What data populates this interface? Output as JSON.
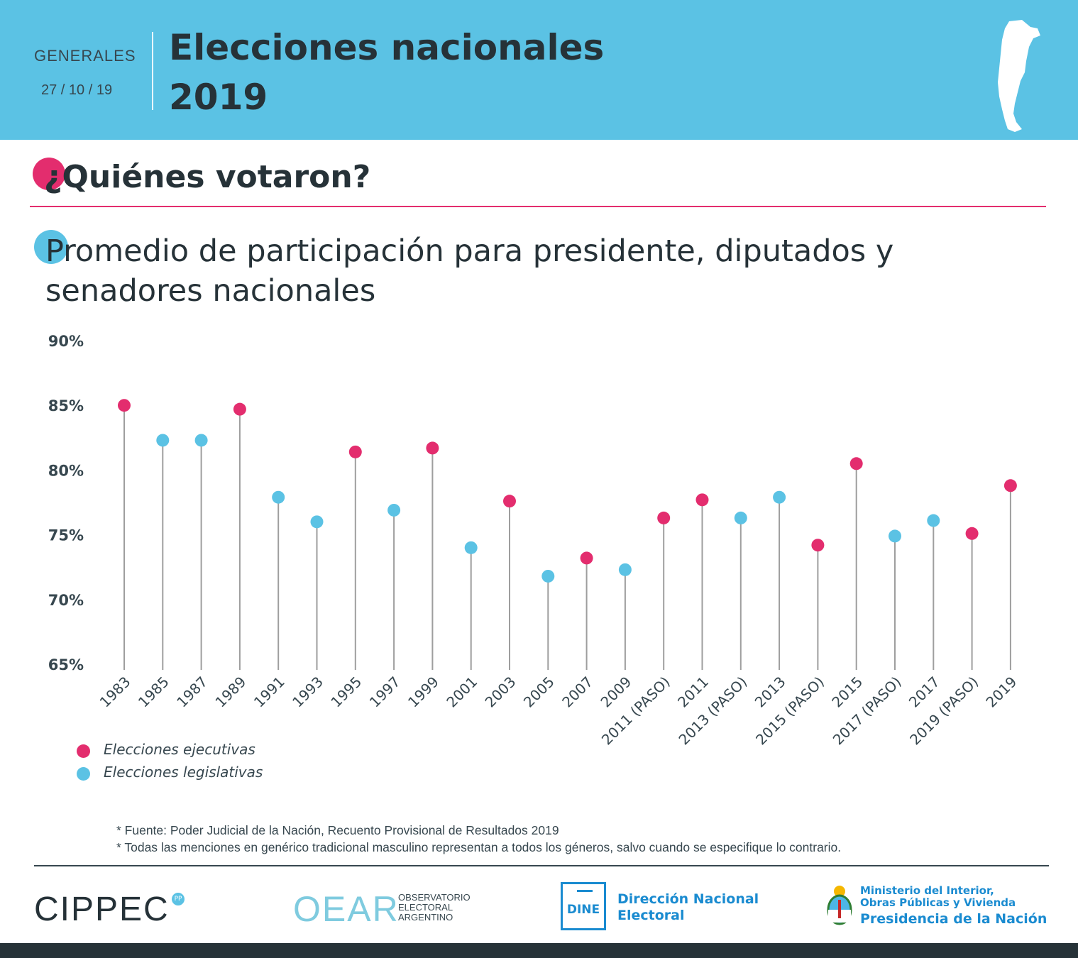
{
  "header": {
    "category": "GENERALES",
    "date": "27 / 10 / 19",
    "title_line1": "Elecciones nacionales",
    "title_line2": "2019",
    "background_color": "#5bc2e4"
  },
  "section": {
    "title": "¿Quiénes votaron?",
    "accent": "#e32d6e"
  },
  "chart_data": {
    "type": "scatter",
    "subtype": "lollipop",
    "title": "Promedio de participación para presidente, diputados y senadores nacionales",
    "xlabel": "",
    "ylabel": "",
    "ylim": [
      65,
      90
    ],
    "yticks": [
      90,
      85,
      80,
      75,
      70,
      65
    ],
    "ytick_labels": [
      "90%",
      "85%",
      "80%",
      "75%",
      "70%",
      "65%"
    ],
    "grid": false,
    "categories": [
      "1983",
      "1985",
      "1987",
      "1989",
      "1991",
      "1993",
      "1995",
      "1997",
      "1999",
      "2001",
      "2003",
      "2005",
      "2007",
      "2009",
      "2011 (PASO)",
      "2011",
      "2013 (PASO)",
      "2013",
      "2015 (PASO)",
      "2015",
      "2017 (PASO)",
      "2017",
      "2019 (PASO)",
      "2019"
    ],
    "values": [
      85.0,
      82.3,
      82.3,
      84.7,
      77.9,
      76.0,
      81.4,
      76.9,
      81.7,
      74.0,
      77.6,
      71.8,
      73.2,
      72.3,
      76.3,
      77.7,
      76.3,
      77.9,
      74.2,
      80.5,
      74.9,
      76.1,
      75.1,
      78.8
    ],
    "series_type": [
      "ejecutiva",
      "legislativa",
      "legislativa",
      "ejecutiva",
      "legislativa",
      "legislativa",
      "ejecutiva",
      "legislativa",
      "ejecutiva",
      "legislativa",
      "ejecutiva",
      "legislativa",
      "ejecutiva",
      "legislativa",
      "ejecutiva",
      "ejecutiva",
      "legislativa",
      "legislativa",
      "ejecutiva",
      "ejecutiva",
      "legislativa",
      "legislativa",
      "ejecutiva",
      "ejecutiva"
    ],
    "legend": [
      {
        "key": "ejecutiva",
        "label": "Elecciones ejecutivas",
        "color": "#e32d6e"
      },
      {
        "key": "legislativa",
        "label": "Elecciones legislativas",
        "color": "#5bc2e4"
      }
    ],
    "legend_position": "bottom-left"
  },
  "notes": [
    "* Fuente: Poder Judicial de la Nación, Recuento Provisional de Resultados 2019",
    "* Todas las menciones en genérico tradicional masculino representan a todos los géneros, salvo cuando se especifique lo contrario."
  ],
  "footer": {
    "cippec": "CIPPEC",
    "cippec_badge": "PP",
    "oear": "OEAR",
    "oear_sub": [
      "OBSERVATORIO",
      "ELECTORAL",
      "ARGENTINO"
    ],
    "dine": "DINE",
    "dine_name": [
      "Dirección Nacional",
      "Electoral"
    ],
    "ministry": [
      "Ministerio del Interior,",
      "Obras Públicas y Vivienda"
    ],
    "presidency": "Presidencia de la Nación"
  }
}
